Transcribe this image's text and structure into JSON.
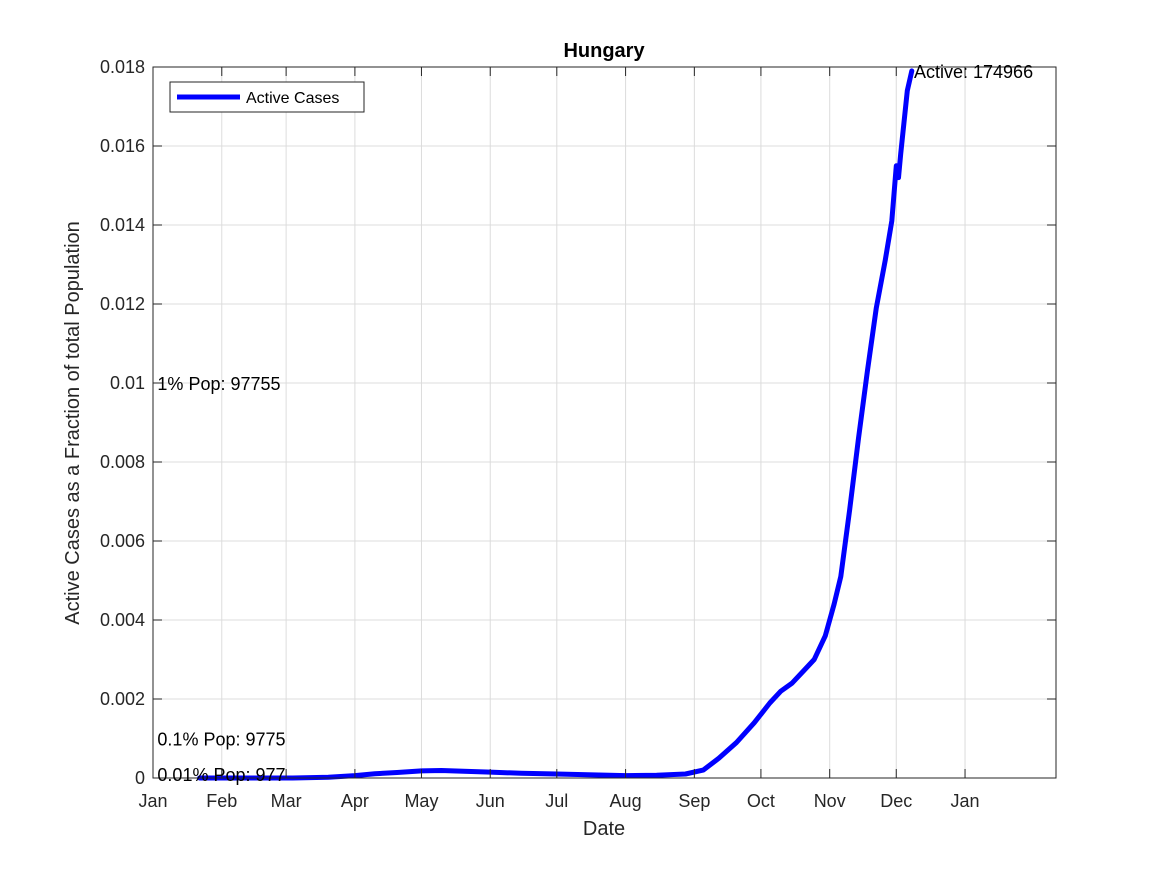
{
  "chart_data": {
    "type": "line",
    "title": "Hungary",
    "xlabel": "Date",
    "ylabel": "Active Cases as a Fraction of total Population",
    "x_tick_labels": [
      "Jan",
      "Feb",
      "Mar",
      "Apr",
      "May",
      "Jun",
      "Jul",
      "Aug",
      "Sep",
      "Oct",
      "Nov",
      "Dec",
      "Jan"
    ],
    "x_tick_dates": [
      "2020-01-01",
      "2020-02-01",
      "2020-03-01",
      "2020-04-01",
      "2020-05-01",
      "2020-06-01",
      "2020-07-01",
      "2020-08-01",
      "2020-09-01",
      "2020-10-01",
      "2020-11-01",
      "2020-12-01",
      "2021-01-01"
    ],
    "xlim": [
      "2020-01-01",
      "2021-02-11"
    ],
    "y_tick_labels": [
      "0",
      "0.002",
      "0.004",
      "0.006",
      "0.008",
      "0.01",
      "0.012",
      "0.014",
      "0.016",
      "0.018"
    ],
    "ylim": [
      0,
      0.018
    ],
    "grid": true,
    "legend_position": "top-left",
    "series": [
      {
        "name": "Active Cases",
        "color": "#0000ff",
        "points": [
          [
            "2020-01-22",
            0
          ],
          [
            "2020-02-15",
            0
          ],
          [
            "2020-03-04",
            0
          ],
          [
            "2020-03-20",
            2e-05
          ],
          [
            "2020-04-01",
            6e-05
          ],
          [
            "2020-04-10",
            0.00011
          ],
          [
            "2020-04-20",
            0.00014
          ],
          [
            "2020-05-01",
            0.00018
          ],
          [
            "2020-05-10",
            0.00019
          ],
          [
            "2020-05-20",
            0.00017
          ],
          [
            "2020-06-01",
            0.00015
          ],
          [
            "2020-06-15",
            0.00012
          ],
          [
            "2020-07-01",
            0.0001
          ],
          [
            "2020-07-15",
            8e-05
          ],
          [
            "2020-08-01",
            6e-05
          ],
          [
            "2020-08-15",
            7e-05
          ],
          [
            "2020-08-28",
            0.0001
          ],
          [
            "2020-09-05",
            0.0002
          ],
          [
            "2020-09-12",
            0.0005
          ],
          [
            "2020-09-20",
            0.0009
          ],
          [
            "2020-09-28",
            0.0014
          ],
          [
            "2020-10-05",
            0.0019
          ],
          [
            "2020-10-10",
            0.0022
          ],
          [
            "2020-10-15",
            0.0024
          ],
          [
            "2020-10-20",
            0.0027
          ],
          [
            "2020-10-25",
            0.003
          ],
          [
            "2020-10-30",
            0.0036
          ],
          [
            "2020-11-03",
            0.0044
          ],
          [
            "2020-11-06",
            0.0051
          ],
          [
            "2020-11-10",
            0.0068
          ],
          [
            "2020-11-14",
            0.0086
          ],
          [
            "2020-11-18",
            0.0103
          ],
          [
            "2020-11-22",
            0.0119
          ],
          [
            "2020-11-26",
            0.0131
          ],
          [
            "2020-11-29",
            0.0141
          ],
          [
            "2020-12-01",
            0.0155
          ],
          [
            "2020-12-02",
            0.0152
          ],
          [
            "2020-12-03",
            0.0158
          ],
          [
            "2020-12-06",
            0.0174
          ],
          [
            "2020-12-08",
            0.0179
          ]
        ]
      }
    ],
    "annotations": [
      {
        "text": "Active: 174966",
        "x": "2020-12-09",
        "y": 0.0179
      },
      {
        "text": "1% Pop: 97755",
        "x": "2020-01-03",
        "y": 0.01
      },
      {
        "text": "0.1% Pop: 9775",
        "x": "2020-01-03",
        "y": 0.001
      },
      {
        "text": "0.01% Pop: 977",
        "x": "2020-01-03",
        "y": 0.0001
      }
    ]
  }
}
